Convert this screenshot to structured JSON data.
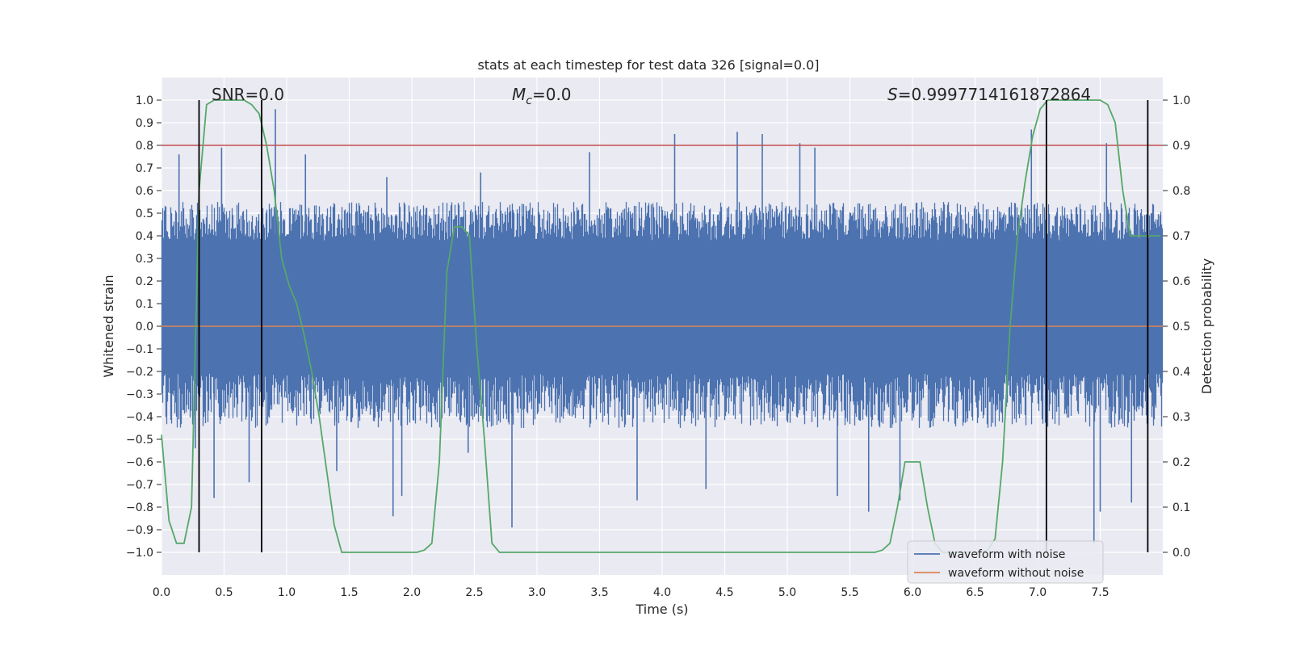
{
  "chart_data": {
    "type": "line",
    "title": "stats at each timestep for test data 326 [signal=0.0]",
    "xlabel": "Time (s)",
    "ylabel": "Whitened strain",
    "y2label": "Detection probability",
    "xlim": [
      0.0,
      8.0
    ],
    "ylim": [
      -1.1,
      1.1
    ],
    "y2lim": [
      -0.05,
      1.05
    ],
    "x_ticks": [
      0.0,
      0.5,
      1.0,
      1.5,
      2.0,
      2.5,
      3.0,
      3.5,
      4.0,
      4.5,
      5.0,
      5.5,
      6.0,
      6.5,
      7.0,
      7.5
    ],
    "x_tick_labels": [
      "0.0",
      "0.5",
      "1.0",
      "1.5",
      "2.0",
      "2.5",
      "3.0",
      "3.5",
      "4.0",
      "4.5",
      "5.0",
      "5.5",
      "6.0",
      "6.5",
      "7.0",
      "7.5"
    ],
    "y_ticks": [
      1.0,
      0.9,
      0.8,
      0.7,
      0.6,
      0.5,
      0.4,
      0.3,
      0.2,
      0.1,
      0.0,
      -0.1,
      -0.2,
      -0.3,
      -0.4,
      -0.5,
      -0.6,
      -0.7,
      -0.8,
      -0.9,
      -1.0
    ],
    "y_tick_labels": [
      "1.0",
      "0.9",
      "0.8",
      "0.7",
      "0.6",
      "0.5",
      "0.4",
      "0.3",
      "0.2",
      "0.1",
      "0.0",
      "−0.1",
      "−0.2",
      "−0.3",
      "−0.4",
      "−0.5",
      "−0.6",
      "−0.7",
      "−0.8",
      "−0.9",
      "−1.0"
    ],
    "y2_ticks": [
      0.0,
      0.1,
      0.2,
      0.3,
      0.4,
      0.5,
      0.6,
      0.7,
      0.8,
      0.9,
      1.0
    ],
    "y2_tick_labels": [
      "0.0",
      "0.1",
      "0.2",
      "0.3",
      "0.4",
      "0.5",
      "0.6",
      "0.7",
      "0.8",
      "0.9",
      "1.0"
    ],
    "grid": true,
    "legend_position": "lower-right",
    "annotations": [
      {
        "id": "snr",
        "text": "SNR=0.0",
        "x": 0.2
      },
      {
        "id": "mc",
        "text": "=0.0",
        "math_prefix": "M",
        "math_sub": "c",
        "x": 2.6
      },
      {
        "id": "s",
        "text": "=0.9997714161872864",
        "math_prefix": "S",
        "x": 5.6
      }
    ],
    "threshold": {
      "value": 0.9,
      "axis": "y2",
      "color": "#c44e52"
    },
    "vertical_lines": [
      0.3,
      0.8,
      7.07,
      7.88
    ],
    "series": [
      {
        "name": "waveform with noise",
        "color": "#4c72b0",
        "envelope": {
          "core_min": -0.21,
          "core_max": 0.38,
          "typical_min": -0.45,
          "typical_max": 0.55
        },
        "spikes": [
          [
            0.14,
            0.76
          ],
          [
            0.36,
            0.47
          ],
          [
            0.48,
            0.79
          ],
          [
            0.8,
            0.58
          ],
          [
            0.91,
            0.96
          ],
          [
            1.15,
            0.76
          ],
          [
            1.8,
            0.66
          ],
          [
            2.55,
            0.68
          ],
          [
            3.42,
            0.77
          ],
          [
            4.1,
            0.85
          ],
          [
            4.6,
            0.86
          ],
          [
            4.8,
            0.85
          ],
          [
            5.1,
            0.81
          ],
          [
            5.22,
            0.79
          ],
          [
            6.95,
            0.87
          ],
          [
            7.55,
            0.81
          ],
          [
            0.27,
            -0.54
          ],
          [
            0.42,
            -0.76
          ],
          [
            0.7,
            -0.69
          ],
          [
            1.4,
            -0.64
          ],
          [
            1.85,
            -0.84
          ],
          [
            1.92,
            -0.75
          ],
          [
            2.45,
            -0.56
          ],
          [
            2.8,
            -0.89
          ],
          [
            3.8,
            -0.77
          ],
          [
            4.35,
            -0.72
          ],
          [
            5.4,
            -0.75
          ],
          [
            5.65,
            -0.82
          ],
          [
            5.9,
            -0.77
          ],
          [
            7.45,
            -0.96
          ],
          [
            7.5,
            -0.82
          ],
          [
            7.75,
            -0.78
          ]
        ]
      },
      {
        "name": "waveform without noise",
        "color": "#dd8452",
        "values_constant": 0.0
      },
      {
        "name": "",
        "axis": "y2",
        "color": "#55a868",
        "x": [
          0.0,
          0.06,
          0.12,
          0.18,
          0.24,
          0.3,
          0.36,
          0.42,
          0.48,
          0.54,
          0.6,
          0.66,
          0.72,
          0.78,
          0.84,
          0.9,
          0.96,
          1.02,
          1.08,
          1.14,
          1.2,
          1.26,
          1.32,
          1.38,
          1.44,
          1.5,
          1.56,
          1.62,
          1.68,
          1.74,
          1.8,
          1.86,
          1.92,
          1.98,
          2.04,
          2.1,
          2.16,
          2.22,
          2.28,
          2.34,
          2.4,
          2.46,
          2.52,
          2.58,
          2.64,
          2.7,
          2.76,
          2.82,
          2.88,
          5.7,
          5.76,
          5.82,
          5.88,
          5.94,
          6.0,
          6.06,
          6.12,
          6.18,
          6.24,
          6.3,
          6.36,
          6.42,
          6.48,
          6.54,
          6.6,
          6.66,
          6.72,
          6.78,
          6.84,
          6.9,
          6.96,
          7.02,
          7.08,
          7.14,
          7.2,
          7.26,
          7.32,
          7.38,
          7.44,
          7.5,
          7.56,
          7.62,
          7.68,
          7.74,
          7.8,
          7.86,
          7.92,
          7.98
        ],
        "values": [
          0.26,
          0.07,
          0.02,
          0.02,
          0.1,
          0.8,
          0.99,
          1.0,
          1.0,
          1.0,
          1.0,
          1.0,
          0.99,
          0.97,
          0.9,
          0.8,
          0.65,
          0.59,
          0.55,
          0.48,
          0.4,
          0.3,
          0.18,
          0.06,
          0.0,
          0.0,
          0.0,
          0.0,
          0.0,
          0.0,
          0.0,
          0.0,
          0.0,
          0.0,
          0.0,
          0.005,
          0.02,
          0.2,
          0.62,
          0.72,
          0.72,
          0.7,
          0.45,
          0.25,
          0.02,
          0.0,
          0.0,
          0.0,
          0.0,
          0.0,
          0.005,
          0.02,
          0.1,
          0.2,
          0.2,
          0.2,
          0.1,
          0.02,
          0.0,
          0.0,
          0.0,
          0.0,
          0.0,
          0.0,
          0.005,
          0.03,
          0.2,
          0.5,
          0.7,
          0.82,
          0.92,
          0.98,
          1.0,
          1.0,
          1.0,
          1.0,
          1.0,
          1.0,
          1.0,
          1.0,
          0.99,
          0.95,
          0.8,
          0.7,
          0.7,
          0.7,
          0.7,
          0.7
        ]
      }
    ]
  }
}
